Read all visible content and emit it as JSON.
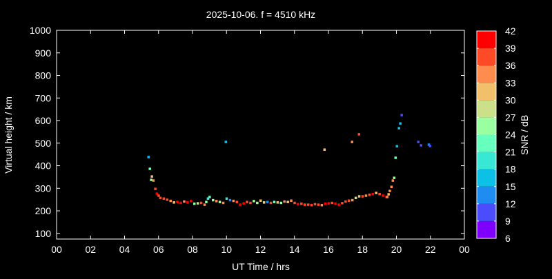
{
  "chart_data": {
    "type": "scatter",
    "title": "2025-10-06. f = 4510 kHz",
    "xlabel": "UT Time / hrs",
    "ylabel": "Virtual height / km",
    "xlim": [
      0,
      24
    ],
    "ylim": [
      75,
      1000
    ],
    "xticks": [
      "00",
      "02",
      "04",
      "06",
      "08",
      "10",
      "12",
      "14",
      "16",
      "18",
      "20",
      "22",
      "00"
    ],
    "yticks": [
      100,
      200,
      300,
      400,
      500,
      600,
      700,
      800,
      900,
      1000
    ],
    "grid": false,
    "colorbar": {
      "label": "SNR / dB",
      "ticks": [
        6,
        9,
        12,
        15,
        18,
        21,
        24,
        27,
        30,
        33,
        36,
        39,
        42
      ],
      "colors": [
        "#7f00ff",
        "#4b4cfb",
        "#1e8cf0",
        "#0cc0e6",
        "#38e8d4",
        "#66ffbe",
        "#99ffa0",
        "#cce08a",
        "#f2c06b",
        "#ff8c4f",
        "#ff4a27",
        "#ff0000"
      ]
    },
    "points": [
      [
        5.4,
        439,
        17
      ],
      [
        5.48,
        387,
        21
      ],
      [
        5.56,
        338,
        26
      ],
      [
        5.6,
        353,
        31
      ],
      [
        5.69,
        335,
        34
      ],
      [
        5.8,
        298,
        37
      ],
      [
        5.89,
        277,
        40
      ],
      [
        6.0,
        268,
        38
      ],
      [
        6.1,
        258,
        37
      ],
      [
        6.3,
        255,
        36
      ],
      [
        6.5,
        250,
        37
      ],
      [
        6.7,
        245,
        35
      ],
      [
        6.9,
        238,
        32
      ],
      [
        7.1,
        240,
        39
      ],
      [
        7.3,
        236,
        40
      ],
      [
        7.5,
        242,
        33
      ],
      [
        7.7,
        238,
        40
      ],
      [
        7.9,
        244,
        40
      ],
      [
        8.1,
        232,
        26
      ],
      [
        8.3,
        234,
        27
      ],
      [
        8.5,
        236,
        36
      ],
      [
        8.7,
        228,
        35
      ],
      [
        8.8,
        240,
        24
      ],
      [
        8.9,
        255,
        20
      ],
      [
        9.0,
        262,
        23
      ],
      [
        9.2,
        248,
        24
      ],
      [
        9.4,
        244,
        34
      ],
      [
        9.6,
        240,
        26
      ],
      [
        9.8,
        236,
        35
      ],
      [
        9.95,
        506,
        16
      ],
      [
        10.0,
        255,
        20
      ],
      [
        10.2,
        248,
        14
      ],
      [
        10.4,
        245,
        33
      ],
      [
        10.6,
        240,
        38
      ],
      [
        10.8,
        228,
        40
      ],
      [
        11.0,
        234,
        40
      ],
      [
        11.2,
        240,
        38
      ],
      [
        11.4,
        236,
        36
      ],
      [
        11.6,
        244,
        26
      ],
      [
        11.8,
        236,
        26
      ],
      [
        12.0,
        246,
        30
      ],
      [
        12.2,
        238,
        27
      ],
      [
        12.4,
        240,
        13
      ],
      [
        12.6,
        236,
        38
      ],
      [
        12.8,
        240,
        21
      ],
      [
        13.0,
        238,
        30
      ],
      [
        13.2,
        236,
        26
      ],
      [
        13.4,
        242,
        33
      ],
      [
        13.6,
        240,
        30
      ],
      [
        13.8,
        246,
        33
      ],
      [
        14.0,
        236,
        37
      ],
      [
        14.2,
        230,
        39
      ],
      [
        14.4,
        232,
        36
      ],
      [
        14.6,
        228,
        36
      ],
      [
        14.8,
        228,
        38
      ],
      [
        15.0,
        226,
        37
      ],
      [
        15.2,
        230,
        36
      ],
      [
        15.4,
        228,
        38
      ],
      [
        15.6,
        226,
        35
      ],
      [
        15.76,
        472,
        32
      ],
      [
        15.8,
        232,
        40
      ],
      [
        16.0,
        234,
        40
      ],
      [
        16.2,
        236,
        37
      ],
      [
        16.4,
        232,
        39
      ],
      [
        16.6,
        228,
        40
      ],
      [
        16.8,
        235,
        37
      ],
      [
        17.0,
        242,
        36
      ],
      [
        17.2,
        246,
        36
      ],
      [
        17.38,
        506,
        33
      ],
      [
        17.4,
        248,
        35
      ],
      [
        17.6,
        258,
        27
      ],
      [
        17.79,
        540,
        37
      ],
      [
        17.8,
        265,
        31
      ],
      [
        18.0,
        265,
        36
      ],
      [
        18.2,
        268,
        33
      ],
      [
        18.4,
        272,
        38
      ],
      [
        18.6,
        275,
        41
      ],
      [
        18.8,
        280,
        30
      ],
      [
        19.0,
        275,
        38
      ],
      [
        19.2,
        268,
        40
      ],
      [
        19.4,
        262,
        40
      ],
      [
        19.45,
        262,
        35
      ],
      [
        19.53,
        274,
        31
      ],
      [
        19.6,
        289,
        34
      ],
      [
        19.7,
        307,
        35
      ],
      [
        19.78,
        335,
        34
      ],
      [
        19.86,
        347,
        26
      ],
      [
        19.94,
        436,
        21
      ],
      [
        20.02,
        487,
        16
      ],
      [
        20.14,
        567,
        16
      ],
      [
        20.22,
        588,
        16
      ],
      [
        20.3,
        625,
        10
      ],
      [
        21.28,
        506,
        10
      ],
      [
        21.44,
        491,
        10
      ],
      [
        21.9,
        494,
        13
      ],
      [
        21.97,
        488,
        11
      ]
    ]
  }
}
